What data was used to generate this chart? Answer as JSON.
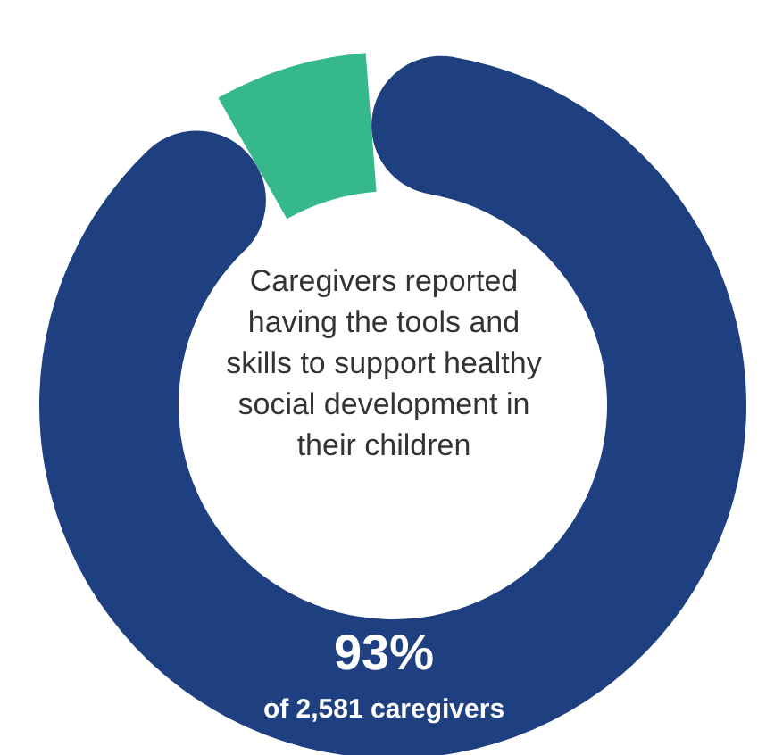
{
  "chart_data": {
    "type": "donut",
    "categories": [
      null,
      null
    ],
    "values": [
      93,
      7
    ],
    "colors": [
      "#1e3f80",
      "#36b98a"
    ],
    "value_labels": [
      "93%",
      null
    ],
    "annotations": [
      "Caregivers reported having the tools and skills to support healthy social development in their children",
      "of 2,581 caregivers"
    ]
  }
}
